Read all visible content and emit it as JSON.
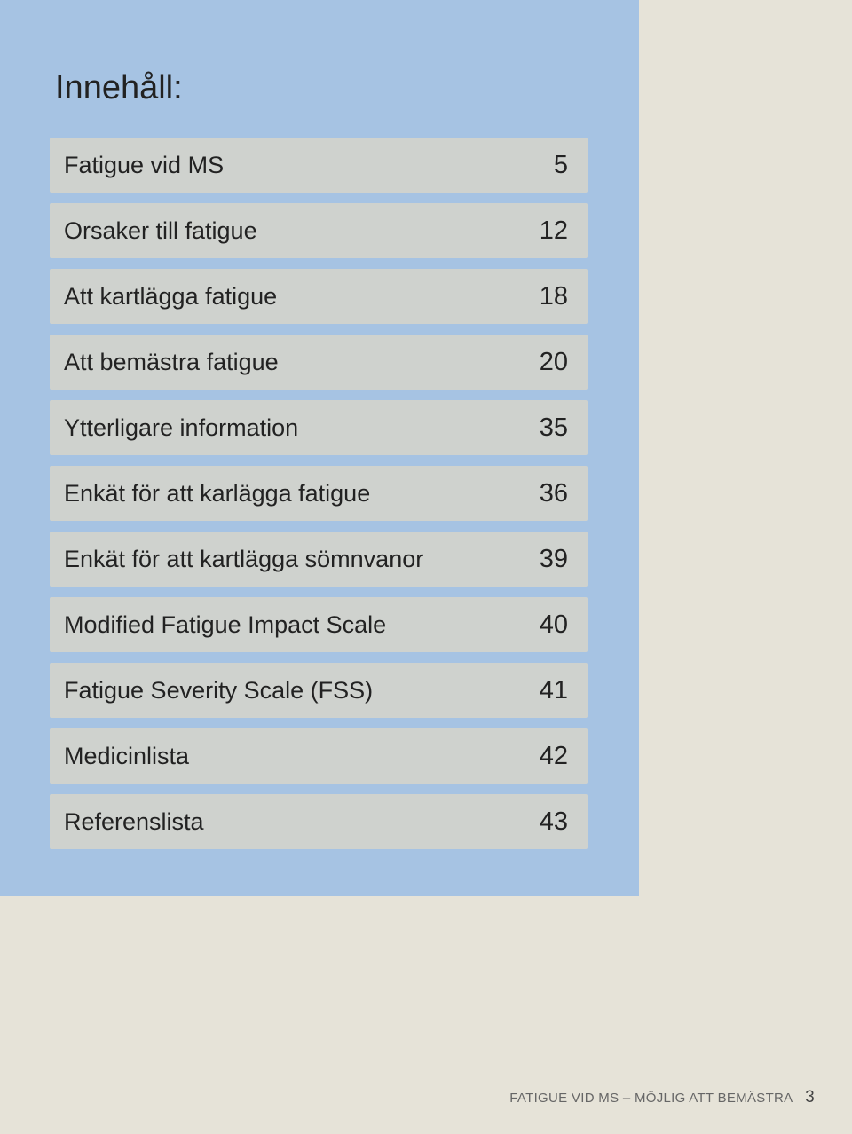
{
  "panel": {
    "background_color": "#a6c3e3",
    "row_background_color": "#cfd2ce",
    "heading": "Innehåll:",
    "heading_fontsize": 38,
    "label_fontsize": 27,
    "page_fontsize": 29
  },
  "page_background_color": "#e6e3d8",
  "toc": [
    {
      "label": "Fatigue vid MS",
      "page": "5"
    },
    {
      "label": "Orsaker till fatigue",
      "page": "12"
    },
    {
      "label": "Att kartlägga fatigue",
      "page": "18"
    },
    {
      "label": "Att bemästra fatigue",
      "page": "20"
    },
    {
      "label": "Ytterligare information",
      "page": "35"
    },
    {
      "label": "Enkät för att karlägga fatigue",
      "page": "36"
    },
    {
      "label": "Enkät för att kartlägga sömnvanor",
      "page": "39"
    },
    {
      "label": "Modified Fatigue Impact Scale",
      "page": "40"
    },
    {
      "label": "Fatigue Severity Scale (FSS)",
      "page": "41"
    },
    {
      "label": "Medicinlista",
      "page": "42"
    },
    {
      "label": "Referenslista",
      "page": "43"
    }
  ],
  "footer": {
    "text": "FATIGUE VID MS – MÖJLIG ATT BEMÄSTRA",
    "page_number": "3"
  }
}
